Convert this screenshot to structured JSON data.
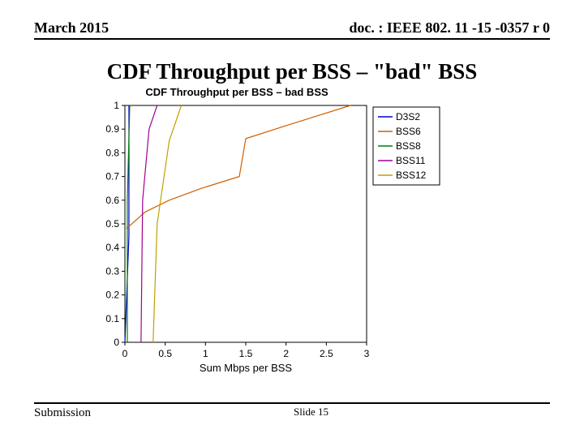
{
  "header": {
    "date": "March 2015",
    "docid": "doc. : IEEE 802. 11 -15 -0357 r 0"
  },
  "title": "CDF Throughput per BSS – \"bad\" BSS",
  "chart": {
    "title": "CDF Throughput per BSS – bad BSS",
    "xlabel": "Sum Mbps per BSS",
    "type": "line-cdf",
    "xlim": [
      0,
      3
    ],
    "ylim": [
      0,
      1
    ],
    "xticks": [
      0,
      0.5,
      1,
      1.5,
      2,
      2.5,
      3
    ],
    "yticks": [
      0,
      0.1,
      0.2,
      0.3,
      0.4,
      0.5,
      0.6,
      0.7,
      0.8,
      0.9,
      1
    ],
    "plot_bg": "#ffffff",
    "axis_color": "#000000",
    "grid_on": false,
    "tick_fontsize": 12,
    "label_fontsize": 13,
    "title_fontsize": 13,
    "legend": {
      "position": "upper-right-outside",
      "border_color": "#000000",
      "bg": "#ffffff",
      "items": [
        {
          "label": "D3S2",
          "color": "#0000d0"
        },
        {
          "label": "BSS6",
          "color": "#d06000"
        },
        {
          "label": "BSS8",
          "color": "#008000"
        },
        {
          "label": "BSS11",
          "color": "#a00090"
        },
        {
          "label": "BSS12",
          "color": "#c0a000"
        }
      ]
    },
    "series": [
      {
        "name": "D3S2",
        "color": "#0000d0",
        "linewidth": 1.2,
        "points": [
          [
            0.0,
            0.0
          ],
          [
            0.05,
            0.45
          ],
          [
            0.05,
            1.0
          ]
        ]
      },
      {
        "name": "BSS6",
        "color": "#d06000",
        "linewidth": 1.2,
        "points": [
          [
            0.02,
            0.48
          ],
          [
            0.25,
            0.55
          ],
          [
            0.55,
            0.6
          ],
          [
            0.95,
            0.65
          ],
          [
            1.42,
            0.7
          ],
          [
            1.5,
            0.86
          ],
          [
            2.05,
            0.92
          ],
          [
            2.8,
            1.0
          ]
        ]
      },
      {
        "name": "BSS8",
        "color": "#008000",
        "linewidth": 1.2,
        "points": [
          [
            0.03,
            0.0
          ],
          [
            0.03,
            0.6
          ],
          [
            0.06,
            1.0
          ]
        ]
      },
      {
        "name": "BSS11",
        "color": "#a00090",
        "linewidth": 1.2,
        "points": [
          [
            0.2,
            0.0
          ],
          [
            0.22,
            0.6
          ],
          [
            0.3,
            0.9
          ],
          [
            0.4,
            1.0
          ]
        ]
      },
      {
        "name": "BSS12",
        "color": "#c0a000",
        "linewidth": 1.2,
        "points": [
          [
            0.35,
            0.0
          ],
          [
            0.4,
            0.5
          ],
          [
            0.55,
            0.85
          ],
          [
            0.7,
            1.0
          ]
        ]
      }
    ]
  },
  "footer": {
    "submission": "Submission",
    "slide": "Slide 15"
  }
}
